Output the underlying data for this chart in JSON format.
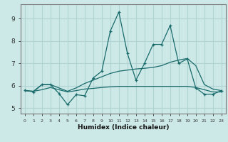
{
  "xlabel": "Humidex (Indice chaleur)",
  "xlim": [
    -0.5,
    23.5
  ],
  "ylim": [
    4.75,
    9.65
  ],
  "yticks": [
    5,
    6,
    7,
    8,
    9
  ],
  "xticks": [
    0,
    1,
    2,
    3,
    4,
    5,
    6,
    7,
    8,
    9,
    10,
    11,
    12,
    13,
    14,
    15,
    16,
    17,
    18,
    19,
    20,
    21,
    22,
    23
  ],
  "bg_color": "#cce9e8",
  "line_color": "#1a6b6b",
  "grid_color": "#afd4d3",
  "line1": {
    "x": [
      0,
      1,
      2,
      3,
      4,
      5,
      6,
      7,
      8,
      9,
      10,
      11,
      12,
      13,
      14,
      15,
      16,
      17,
      18,
      19,
      20,
      21,
      22,
      23
    ],
    "y": [
      5.8,
      5.72,
      6.05,
      6.05,
      5.65,
      5.15,
      5.6,
      5.55,
      6.35,
      6.65,
      8.45,
      9.3,
      7.45,
      6.25,
      7.0,
      7.85,
      7.85,
      8.7,
      7.0,
      7.2,
      5.9,
      5.62,
      5.62,
      5.78
    ]
  },
  "line2": {
    "x": [
      0,
      1,
      2,
      3,
      4,
      5,
      6,
      7,
      8,
      9,
      10,
      11,
      12,
      13,
      14,
      15,
      16,
      17,
      18,
      19,
      20,
      21,
      22,
      23
    ],
    "y": [
      5.78,
      5.75,
      6.05,
      6.05,
      5.9,
      5.75,
      5.9,
      6.1,
      6.25,
      6.4,
      6.55,
      6.65,
      6.7,
      6.75,
      6.78,
      6.82,
      6.9,
      7.05,
      7.15,
      7.22,
      6.9,
      6.05,
      5.85,
      5.78
    ]
  },
  "line3": {
    "x": [
      0,
      1,
      2,
      3,
      4,
      5,
      6,
      7,
      8,
      9,
      10,
      11,
      12,
      13,
      14,
      15,
      16,
      17,
      18,
      19,
      20,
      21,
      22,
      23
    ],
    "y": [
      5.78,
      5.75,
      5.82,
      5.92,
      5.82,
      5.72,
      5.78,
      5.85,
      5.88,
      5.92,
      5.95,
      5.97,
      5.97,
      5.97,
      5.97,
      5.97,
      5.97,
      5.97,
      5.97,
      5.97,
      5.92,
      5.82,
      5.72,
      5.72
    ]
  }
}
